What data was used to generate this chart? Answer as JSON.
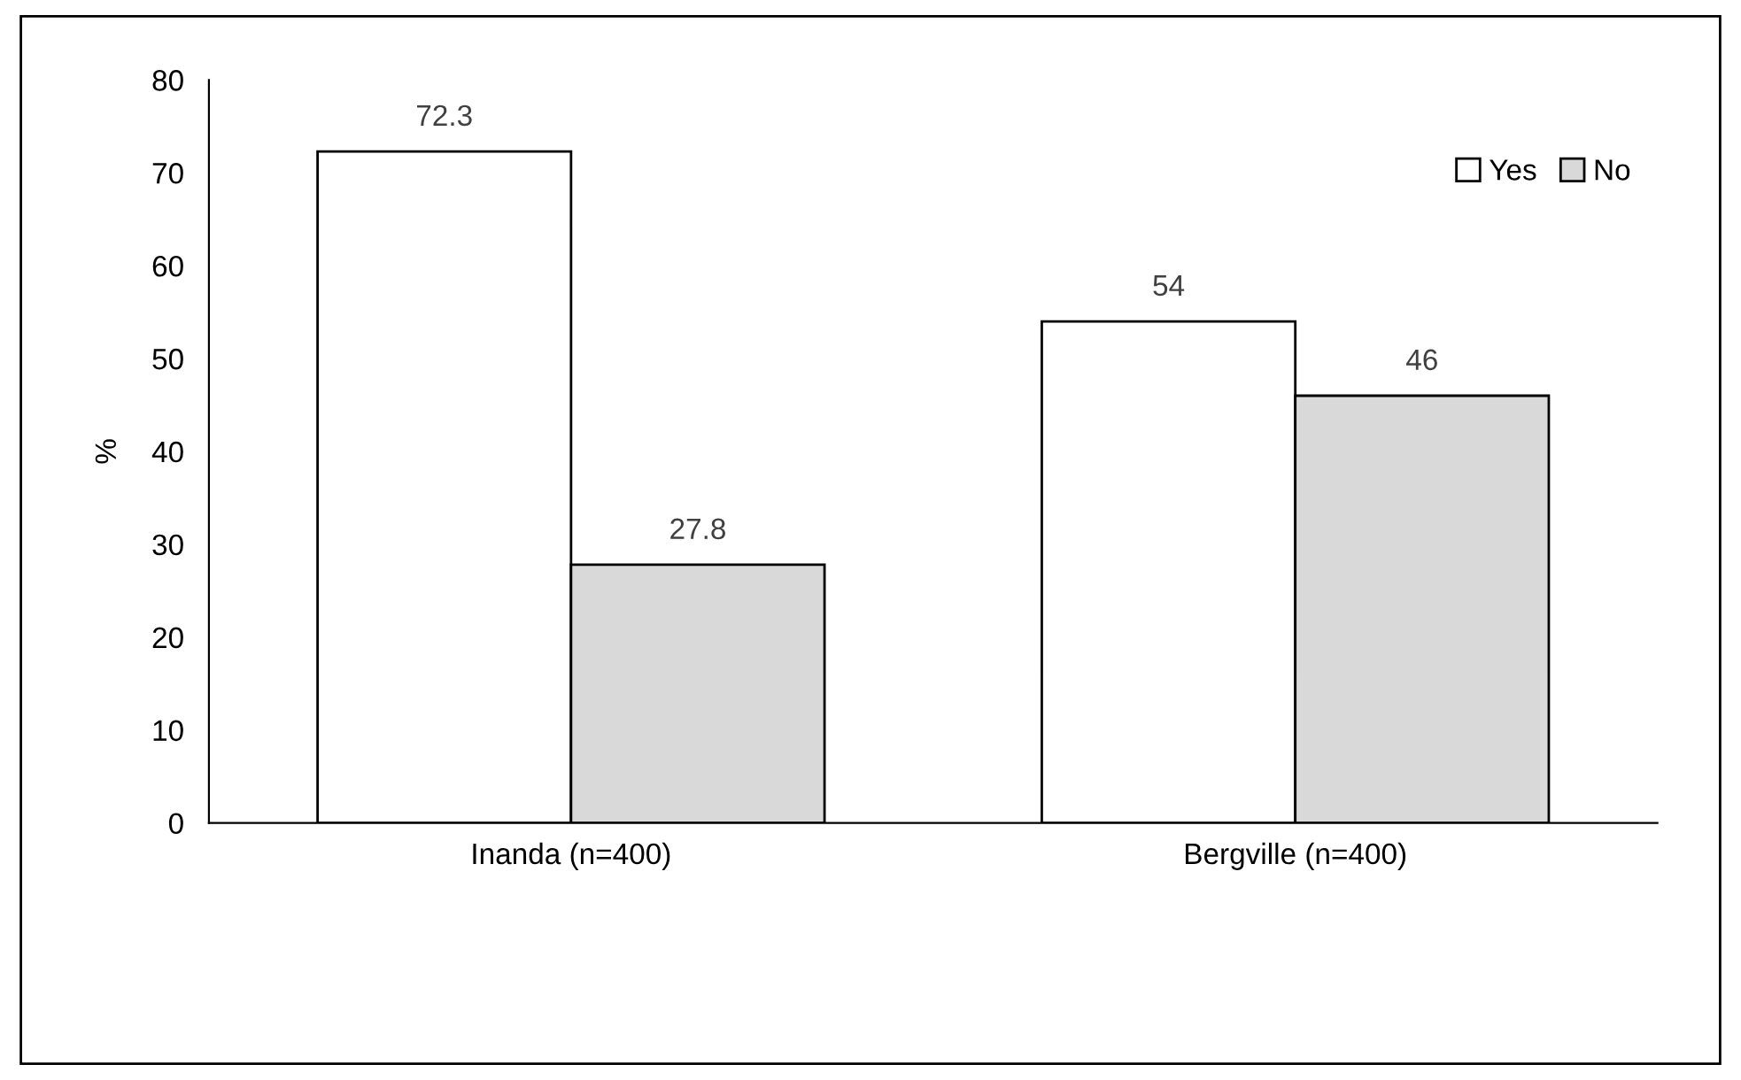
{
  "chart_data": {
    "type": "bar",
    "ylabel": "%",
    "categories": [
      "Inanda (n=400)",
      "Bergville (n=400)"
    ],
    "series": [
      {
        "name": "Yes",
        "color": "#ffffff",
        "values": [
          72.3,
          54
        ]
      },
      {
        "name": "No",
        "color": "#d9d9d9",
        "values": [
          27.8,
          46
        ]
      }
    ],
    "ylim": [
      0,
      80
    ],
    "yticks": [
      0,
      10,
      20,
      30,
      40,
      50,
      60,
      70,
      80
    ],
    "data_labels": true,
    "legend": "top right",
    "grid": false
  }
}
